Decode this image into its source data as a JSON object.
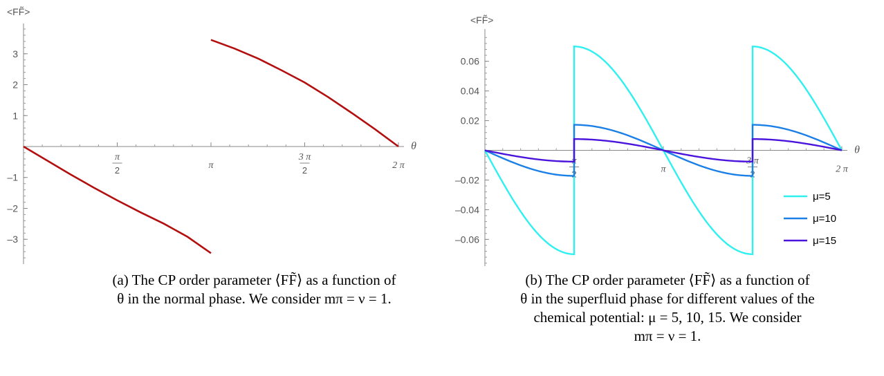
{
  "chart_data": [
    {
      "type": "line",
      "ylabel": "<FF̃>",
      "xlabel": "θ",
      "x_ticks": [
        {
          "value": 1.5708,
          "num": "π",
          "den": "2"
        },
        {
          "value": 3.1416,
          "label": "π"
        },
        {
          "value": 4.7124,
          "num": "3 π",
          "den": "2"
        },
        {
          "value": 6.2832,
          "label": "2 π"
        }
      ],
      "y_ticks": [
        -3,
        -2,
        -1,
        1,
        2,
        3
      ],
      "xlim": [
        0,
        6.2832
      ],
      "ylim": [
        -3.8,
        3.8
      ],
      "grid": false,
      "series": [
        {
          "color": "#b30f0f",
          "segments": [
            [
              [
                0,
                0
              ],
              [
                0.3927,
                -0.45
              ],
              [
                0.7854,
                -0.9
              ],
              [
                1.1781,
                -1.33
              ],
              [
                1.5708,
                -1.74
              ],
              [
                1.9635,
                -2.13
              ],
              [
                2.3562,
                -2.5
              ],
              [
                2.7489,
                -2.92
              ],
              [
                3.1416,
                -3.45
              ]
            ],
            [
              [
                3.1416,
                3.45
              ],
              [
                3.5343,
                3.17
              ],
              [
                3.927,
                2.85
              ],
              [
                4.3197,
                2.47
              ],
              [
                4.7124,
                2.07
              ],
              [
                5.1051,
                1.6
              ],
              [
                5.4978,
                1.09
              ],
              [
                5.8905,
                0.56
              ],
              [
                6.2832,
                0
              ]
            ]
          ]
        }
      ],
      "caption": {
        "lines": [
          "(a) The CP order parameter ⟨FF̃⟩ as a function of",
          "θ in the normal phase. We consider mπ = ν = 1."
        ]
      }
    },
    {
      "type": "line",
      "ylabel": "<FF̃>",
      "xlabel": "θ",
      "x_ticks": [
        {
          "value": 1.5708,
          "num": "π",
          "den": "2"
        },
        {
          "value": 3.1416,
          "label": "π"
        },
        {
          "value": 4.7124,
          "num": "3 π",
          "den": "2"
        },
        {
          "value": 6.2832,
          "label": "2 π"
        }
      ],
      "y_ticks": [
        -0.06,
        -0.04,
        -0.02,
        0.02,
        0.04,
        0.06
      ],
      "y_tick_labels": [
        "–0.06",
        "–0.04",
        "–0.02",
        "0.02",
        "0.04",
        "0.06"
      ],
      "xlim": [
        0,
        6.2832
      ],
      "ylim": [
        -0.078,
        0.078
      ],
      "grid": false,
      "legend": {
        "position": "bottom-right"
      },
      "series": [
        {
          "name": "μ=5",
          "color": "#2ff0f0",
          "amplitude": 0.07
        },
        {
          "name": "μ=10",
          "color": "#1a7fe6",
          "amplitude": 0.0172
        },
        {
          "name": "μ=15",
          "color": "#4a14dc",
          "amplitude": 0.0076
        }
      ],
      "caption": {
        "lines": [
          "(b) The CP order parameter ⟨FF̃⟩ as a function of",
          "θ in the superfluid phase for different values of the",
          "chemical potential: μ = 5, 10, 15. We consider",
          "mπ = ν = 1."
        ]
      }
    }
  ]
}
